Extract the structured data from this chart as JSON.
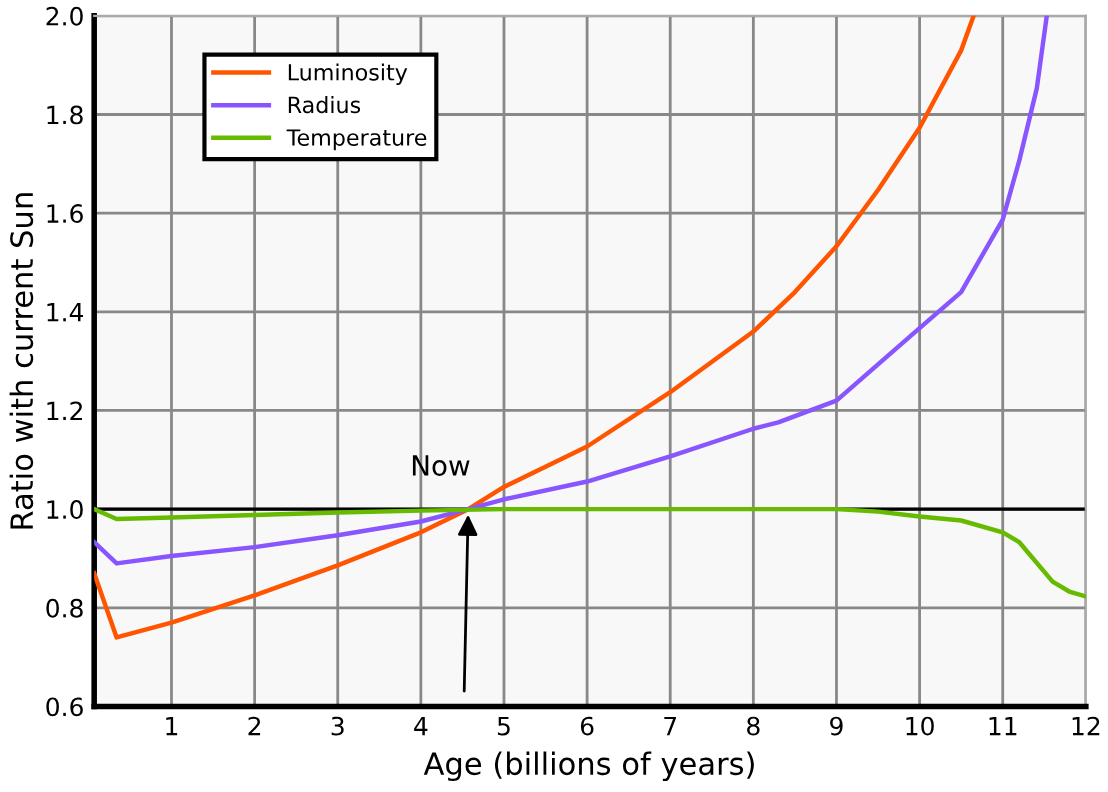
{
  "chart_data": {
    "type": "line",
    "xlabel": "Age (billions of years)",
    "ylabel": "Ratio with current Sun",
    "xlim": [
      0.07,
      12
    ],
    "ylim": [
      0.6,
      2.0
    ],
    "xticks": [
      1,
      2,
      3,
      4,
      5,
      6,
      7,
      8,
      9,
      10,
      11,
      12
    ],
    "yticks": [
      0.6,
      0.8,
      {
        "value": 1,
        "label": "1.0"
      },
      1.2,
      1.4,
      1.6,
      1.8,
      {
        "value": 2,
        "label": "2.0"
      }
    ],
    "grid": true,
    "legend": "top left",
    "marker": "none",
    "line_style": "solid",
    "ref_lines": [
      {
        "axis": "y",
        "value": 1.0,
        "color": "#000000"
      }
    ],
    "annotations": [
      {
        "text": "Now",
        "x": 4.57,
        "y": 1.0
      }
    ],
    "series": [
      {
        "name": "Luminosity",
        "color": "#ff5500",
        "x": [
          0.07,
          0.34,
          1,
          2,
          3,
          4,
          4.57,
          5,
          6,
          7,
          8,
          8.5,
          9,
          9.5,
          10,
          10.5,
          10.65
        ],
        "values": [
          0.87,
          0.74,
          0.77,
          0.825,
          0.886,
          0.953,
          1.0,
          1.045,
          1.127,
          1.237,
          1.36,
          1.44,
          1.533,
          1.647,
          1.773,
          1.93,
          2.0
        ]
      },
      {
        "name": "Radius",
        "color": "#8855ff",
        "x": [
          0.07,
          0.34,
          1,
          2,
          3,
          4,
          4.57,
          5,
          6,
          7,
          8,
          8.3,
          9,
          10,
          10.5,
          11,
          11.2,
          11.41,
          11.53
        ],
        "values": [
          0.933,
          0.89,
          0.905,
          0.923,
          0.947,
          0.975,
          1.0,
          1.02,
          1.056,
          1.107,
          1.163,
          1.176,
          1.22,
          1.367,
          1.44,
          1.587,
          1.707,
          1.853,
          2.0
        ]
      },
      {
        "name": "Temperature",
        "color": "#66bb00",
        "x": [
          0.07,
          0.34,
          1,
          2,
          3,
          4,
          5,
          6,
          7,
          8,
          9,
          9.5,
          10,
          10.5,
          11,
          11.2,
          11.6,
          11.8,
          12
        ],
        "values": [
          1.0,
          0.98,
          0.983,
          0.988,
          0.993,
          0.997,
          1.0,
          1.0,
          1.0,
          1.0,
          1.0,
          0.995,
          0.985,
          0.977,
          0.953,
          0.933,
          0.853,
          0.833,
          0.823
        ]
      }
    ]
  }
}
